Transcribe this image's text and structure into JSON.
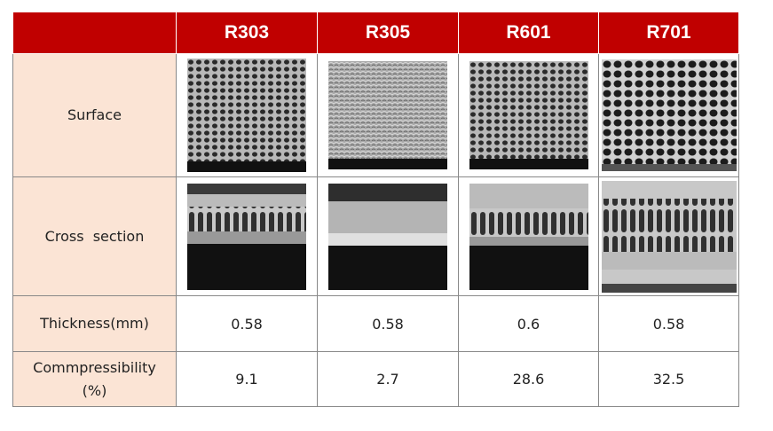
{
  "table": {
    "columns": [
      "R303",
      "R305",
      "R601",
      "R701"
    ],
    "rows": [
      {
        "label": "Surface"
      },
      {
        "label": "Cross  section"
      },
      {
        "label": "Thickness(mm)",
        "values": [
          "0.58",
          "0.58",
          "0.6",
          "0.58"
        ]
      },
      {
        "label_lines": [
          "Commpressibility",
          "(%)"
        ],
        "values": [
          "9.1",
          "2.7",
          "28.6",
          "32.5"
        ]
      }
    ]
  }
}
